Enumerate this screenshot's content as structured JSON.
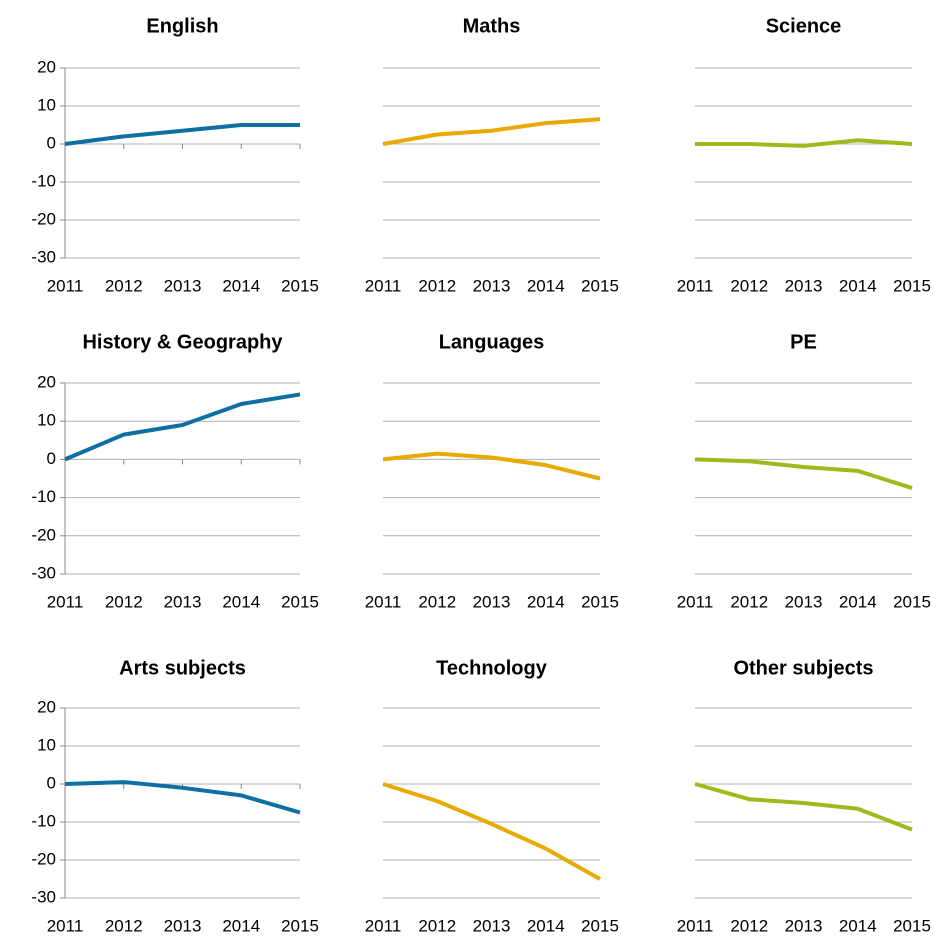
{
  "chart_data": [
    {
      "type": "line",
      "title": "English",
      "categories": [
        "2011",
        "2012",
        "2013",
        "2014",
        "2015"
      ],
      "series": [
        {
          "color": "#0e6fa3",
          "values": [
            0,
            2,
            3.5,
            5,
            5
          ]
        }
      ],
      "ylim": [
        -30,
        20
      ],
      "yticks": [
        -30,
        -20,
        -10,
        0,
        10,
        20
      ],
      "show_ytick_labels": true
    },
    {
      "type": "line",
      "title": "Maths",
      "categories": [
        "2011",
        "2012",
        "2013",
        "2014",
        "2015"
      ],
      "series": [
        {
          "color": "#e8a900",
          "values": [
            0,
            2.5,
            3.5,
            5.5,
            6.5
          ]
        }
      ],
      "ylim": [
        -30,
        20
      ],
      "yticks": [
        -30,
        -20,
        -10,
        0,
        10,
        20
      ],
      "show_ytick_labels": false
    },
    {
      "type": "line",
      "title": "Science",
      "categories": [
        "2011",
        "2012",
        "2013",
        "2014",
        "2015"
      ],
      "series": [
        {
          "color": "#a3b81c",
          "values": [
            0,
            0,
            -0.5,
            1,
            0
          ]
        }
      ],
      "ylim": [
        -30,
        20
      ],
      "yticks": [
        -30,
        -20,
        -10,
        0,
        10,
        20
      ],
      "show_ytick_labels": false
    },
    {
      "type": "line",
      "title": "History & Geography",
      "categories": [
        "2011",
        "2012",
        "2013",
        "2014",
        "2015"
      ],
      "series": [
        {
          "color": "#0e6fa3",
          "values": [
            0,
            6.5,
            9,
            14.5,
            17
          ]
        }
      ],
      "ylim": [
        -30,
        20
      ],
      "yticks": [
        -30,
        -20,
        -10,
        0,
        10,
        20
      ],
      "show_ytick_labels": true
    },
    {
      "type": "line",
      "title": "Languages",
      "categories": [
        "2011",
        "2012",
        "2013",
        "2014",
        "2015"
      ],
      "series": [
        {
          "color": "#e8a900",
          "values": [
            0,
            1.5,
            0.5,
            -1.5,
            -5
          ]
        }
      ],
      "ylim": [
        -30,
        20
      ],
      "yticks": [
        -30,
        -20,
        -10,
        0,
        10,
        20
      ],
      "show_ytick_labels": false
    },
    {
      "type": "line",
      "title": "PE",
      "categories": [
        "2011",
        "2012",
        "2013",
        "2014",
        "2015"
      ],
      "series": [
        {
          "color": "#a3b81c",
          "values": [
            0,
            -0.5,
            -2,
            -3,
            -7.5
          ]
        }
      ],
      "ylim": [
        -30,
        20
      ],
      "yticks": [
        -30,
        -20,
        -10,
        0,
        10,
        20
      ],
      "show_ytick_labels": false
    },
    {
      "type": "line",
      "title": "Arts subjects",
      "categories": [
        "2011",
        "2012",
        "2013",
        "2014",
        "2015"
      ],
      "series": [
        {
          "color": "#0e6fa3",
          "values": [
            0,
            0.5,
            -1,
            -3,
            -7.5
          ]
        }
      ],
      "ylim": [
        -30,
        20
      ],
      "yticks": [
        -30,
        -20,
        -10,
        0,
        10,
        20
      ],
      "show_ytick_labels": true
    },
    {
      "type": "line",
      "title": "Technology",
      "categories": [
        "2011",
        "2012",
        "2013",
        "2014",
        "2015"
      ],
      "series": [
        {
          "color": "#e8a900",
          "values": [
            0,
            -4.5,
            -10.5,
            -17,
            -25
          ]
        }
      ],
      "ylim": [
        -30,
        20
      ],
      "yticks": [
        -30,
        -20,
        -10,
        0,
        10,
        20
      ],
      "show_ytick_labels": false
    },
    {
      "type": "line",
      "title": "Other subjects",
      "categories": [
        "2011",
        "2012",
        "2013",
        "2014",
        "2015"
      ],
      "series": [
        {
          "color": "#a3b81c",
          "values": [
            0,
            -4,
            -5,
            -6.5,
            -12
          ]
        }
      ],
      "ylim": [
        -30,
        20
      ],
      "yticks": [
        -30,
        -20,
        -10,
        0,
        10,
        20
      ],
      "show_ytick_labels": false
    }
  ]
}
